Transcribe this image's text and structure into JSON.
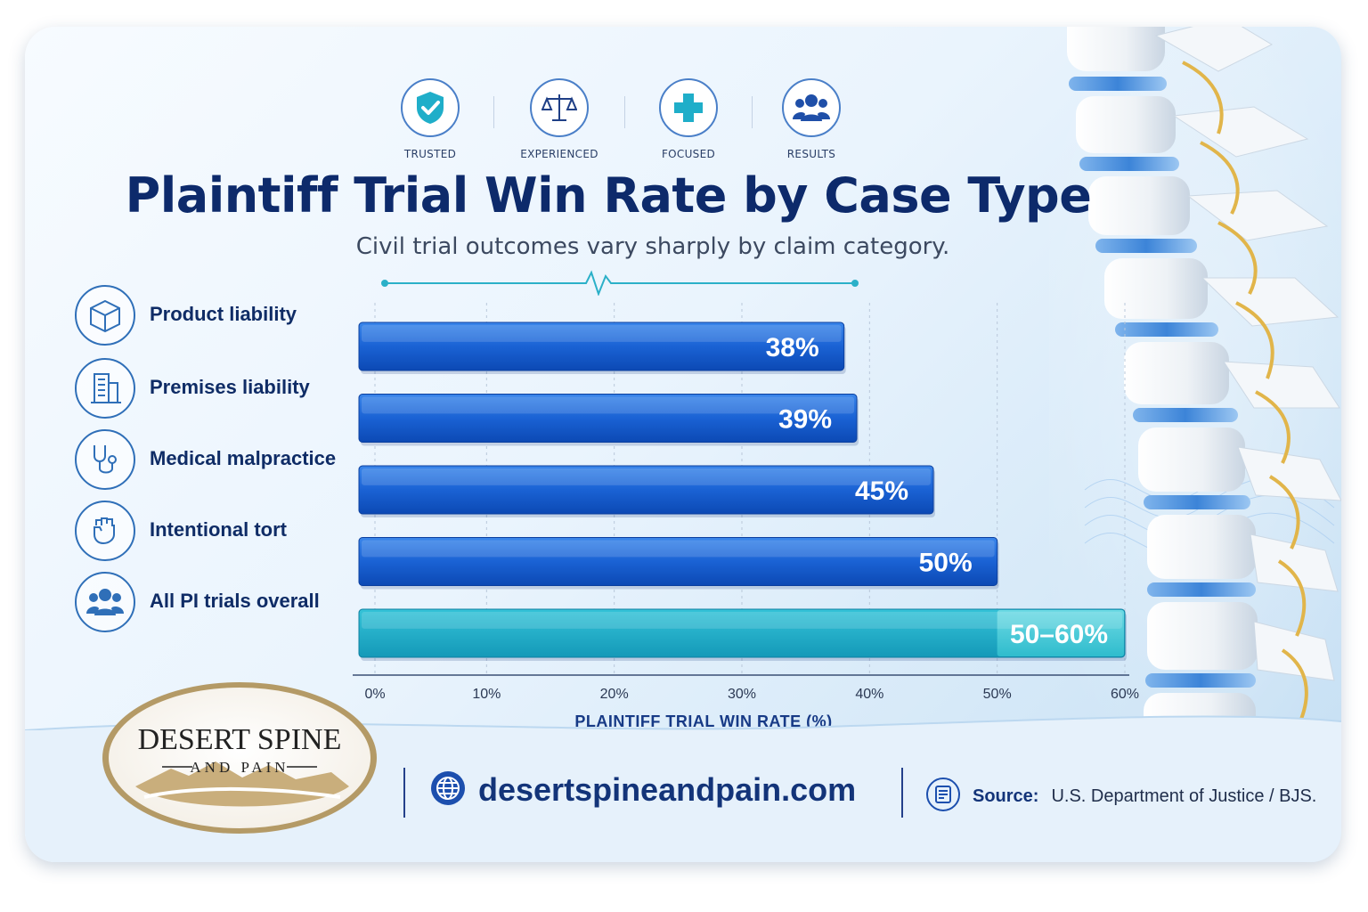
{
  "badges": [
    {
      "label": "TRUSTED",
      "icon": "shield-check-icon"
    },
    {
      "label": "EXPERIENCED",
      "icon": "scales-icon"
    },
    {
      "label": "FOCUSED",
      "icon": "medical-cross-icon"
    },
    {
      "label": "RESULTS",
      "icon": "people-group-icon"
    }
  ],
  "title": "Plaintiff Trial Win Rate by Case Type",
  "subtitle": "Civil trial outcomes vary sharply by claim category.",
  "categories": [
    {
      "label": "Product liability",
      "icon": "box-icon"
    },
    {
      "label": "Premises liability",
      "icon": "building-icon"
    },
    {
      "label": "Medical malpractice",
      "icon": "stethoscope-icon"
    },
    {
      "label": "Intentional tort",
      "icon": "fist-icon"
    },
    {
      "label": "All PI trials overall",
      "icon": "people-group-icon"
    }
  ],
  "chart_data": {
    "type": "bar",
    "orientation": "horizontal",
    "categories": [
      "Product liability",
      "Premises liability",
      "Medical malpractice",
      "Intentional tort",
      "All PI trials overall"
    ],
    "values": [
      38,
      39,
      45,
      50,
      [
        50,
        60
      ]
    ],
    "value_labels": [
      "38%",
      "39%",
      "45%",
      "50%",
      "50–60%"
    ],
    "xlabel": "PLAINTIFF TRIAL WIN RATE (%)",
    "xlim": [
      0,
      60
    ],
    "xticks": [
      "0%",
      "10%",
      "20%",
      "30%",
      "40%",
      "50%",
      "60%"
    ],
    "grid": true,
    "colors": {
      "primary": "#1560d0",
      "highlight": "#1ab3cc"
    }
  },
  "footer": {
    "logo_line1": "DESERT SPINE",
    "logo_line2": "AND PAIN",
    "website": "desertspineandpain.com",
    "source_key": "Source:",
    "source_value": "U.S. Department of Justice / BJS."
  }
}
